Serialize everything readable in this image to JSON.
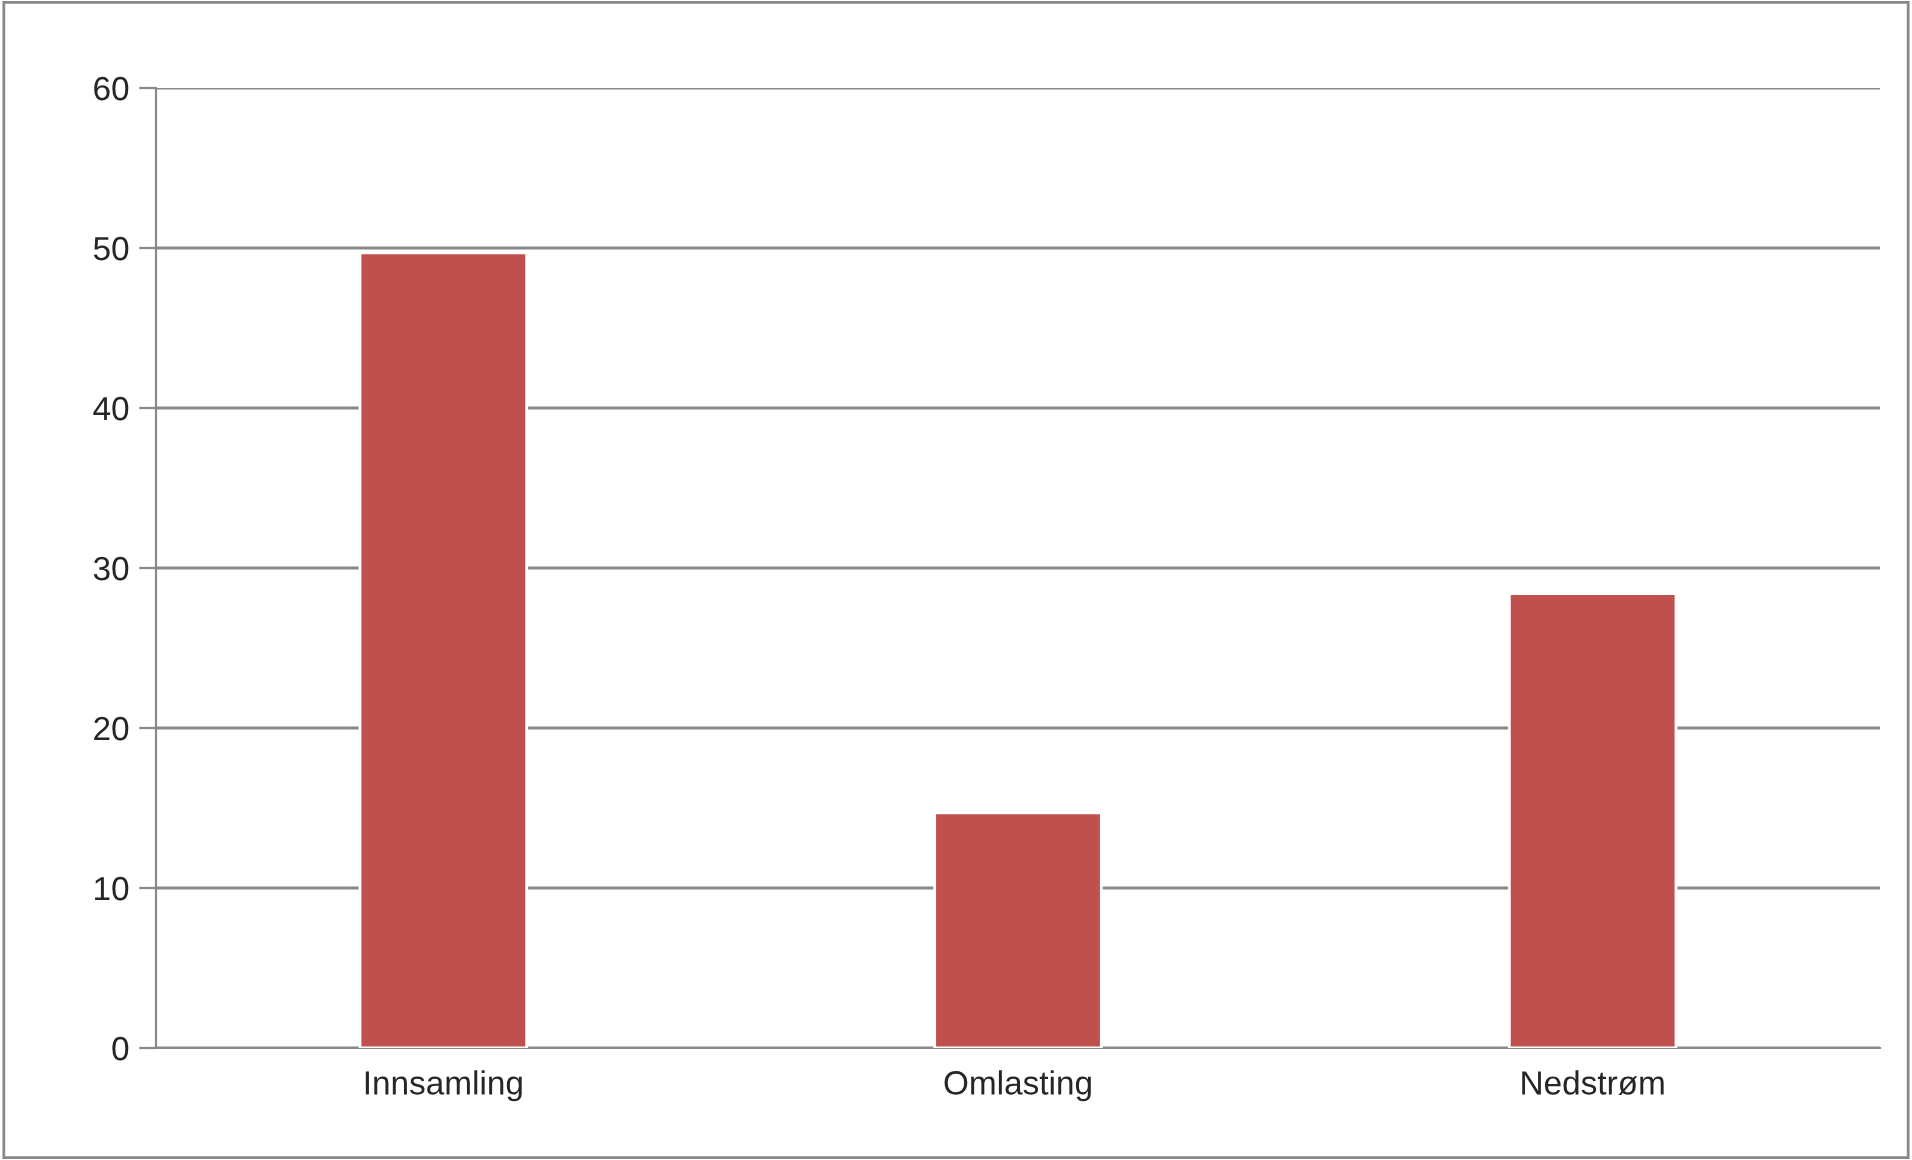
{
  "chart_data": {
    "type": "bar",
    "categories": [
      "Innsamling",
      "Omlasting",
      "Nedstrøm"
    ],
    "values": [
      49.7,
      14.7,
      28.4
    ],
    "color": "#c0504d",
    "ylim": [
      0,
      60
    ],
    "yticks": [
      0,
      10,
      20,
      30,
      40,
      50,
      60
    ],
    "grid": "y",
    "legend": false
  }
}
